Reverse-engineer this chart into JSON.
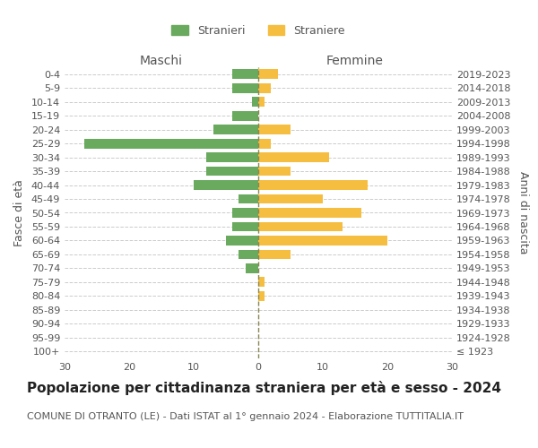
{
  "age_groups": [
    "100+",
    "95-99",
    "90-94",
    "85-89",
    "80-84",
    "75-79",
    "70-74",
    "65-69",
    "60-64",
    "55-59",
    "50-54",
    "45-49",
    "40-44",
    "35-39",
    "30-34",
    "25-29",
    "20-24",
    "15-19",
    "10-14",
    "5-9",
    "0-4"
  ],
  "birth_years": [
    "≤ 1923",
    "1924-1928",
    "1929-1933",
    "1934-1938",
    "1939-1943",
    "1944-1948",
    "1949-1953",
    "1954-1958",
    "1959-1963",
    "1964-1968",
    "1969-1973",
    "1974-1978",
    "1979-1983",
    "1984-1988",
    "1989-1993",
    "1994-1998",
    "1999-2003",
    "2004-2008",
    "2009-2013",
    "2014-2018",
    "2019-2023"
  ],
  "males": [
    0,
    0,
    0,
    0,
    0,
    0,
    2,
    3,
    5,
    4,
    4,
    3,
    10,
    8,
    8,
    27,
    7,
    4,
    1,
    4,
    4
  ],
  "females": [
    0,
    0,
    0,
    0,
    1,
    1,
    0,
    5,
    20,
    13,
    16,
    10,
    17,
    5,
    11,
    2,
    5,
    0,
    1,
    2,
    3
  ],
  "male_color": "#6aaa5f",
  "female_color": "#f5be41",
  "center_line_color": "#888855",
  "grid_color": "#cccccc",
  "title": "Popolazione per cittadinanza straniera per età e sesso - 2024",
  "subtitle": "COMUNE DI OTRANTO (LE) - Dati ISTAT al 1° gennaio 2024 - Elaborazione TUTTITALIA.IT",
  "ylabel_left": "Fasce di età",
  "ylabel_right": "Anni di nascita",
  "xlabel_left": "Maschi",
  "xlabel_right": "Femmine",
  "legend_male": "Stranieri",
  "legend_female": "Straniere",
  "xlim": 30,
  "background_color": "#ffffff",
  "text_color": "#555555",
  "title_fontsize": 11,
  "subtitle_fontsize": 8,
  "tick_fontsize": 8,
  "label_fontsize": 9
}
